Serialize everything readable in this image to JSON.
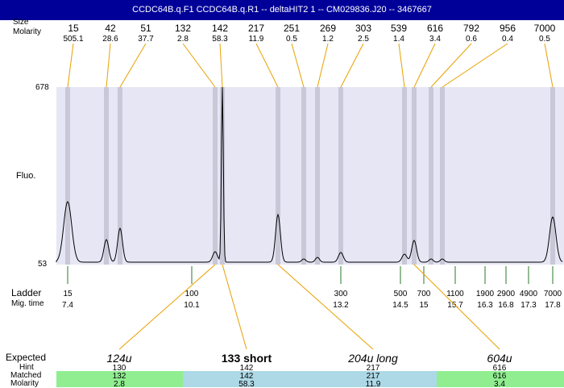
{
  "header": {
    "title": "CCDC64B.q.F1  CCDC64B.q.R1 -- deltaHIT2 1 -- CM029836.J20 -- 3467667"
  },
  "labels": {
    "peak_size": "Size",
    "molarity": "Molarity",
    "y_max": "678",
    "y_min": "53",
    "y_axis": "Fluo.",
    "ladder": "Ladder",
    "mig_time": "Mig. time",
    "expected": "Expected",
    "hint": "Hint",
    "matched": "Matched",
    "molarity_bottom": "Molarity"
  },
  "chart_data": {
    "type": "line",
    "ylim": [
      53,
      678
    ],
    "peaks": [
      {
        "size": "15",
        "molarity": "505.1"
      },
      {
        "size": "42",
        "molarity": "28.6"
      },
      {
        "size": "51",
        "molarity": "37.7"
      },
      {
        "size": "132",
        "molarity": "2.8"
      },
      {
        "size": "142",
        "molarity": "58.3"
      },
      {
        "size": "217",
        "molarity": "11.9"
      },
      {
        "size": "251",
        "molarity": "0.5"
      },
      {
        "size": "269",
        "molarity": "1.2"
      },
      {
        "size": "303",
        "molarity": "2.5"
      },
      {
        "size": "539",
        "molarity": "1.4"
      },
      {
        "size": "616",
        "molarity": "3.4"
      },
      {
        "size": "792",
        "molarity": "0.6"
      },
      {
        "size": "956",
        "molarity": "0.4"
      },
      {
        "size": "7000",
        "molarity": "0.5"
      }
    ],
    "ladder": [
      {
        "size": "15",
        "time": "7.4"
      },
      {
        "size": "100",
        "time": "10.1"
      },
      {
        "size": "300",
        "time": "13.2"
      },
      {
        "size": "500",
        "time": "14.5"
      },
      {
        "size": "700",
        "time": "15"
      },
      {
        "size": "1100",
        "time": "15.7"
      },
      {
        "size": "1900",
        "time": "16.3"
      },
      {
        "size": "2900",
        "time": "16.8"
      },
      {
        "size": "4900",
        "time": "17.3"
      },
      {
        "size": "7000",
        "time": "17.8"
      }
    ],
    "expected": [
      {
        "name": "124u",
        "hint": "130",
        "matched": "132",
        "molarity": "2.8",
        "color": "#90ee90"
      },
      {
        "name": "133 short",
        "hint": "142",
        "matched": "142",
        "molarity": "58.3",
        "color": "#add8e6"
      },
      {
        "name": "204u long",
        "hint": "217",
        "matched": "217",
        "molarity": "11.9",
        "color": "#add8e6"
      },
      {
        "name": "604u",
        "hint": "616",
        "matched": "616",
        "molarity": "3.4",
        "color": "#90ee90"
      }
    ]
  }
}
